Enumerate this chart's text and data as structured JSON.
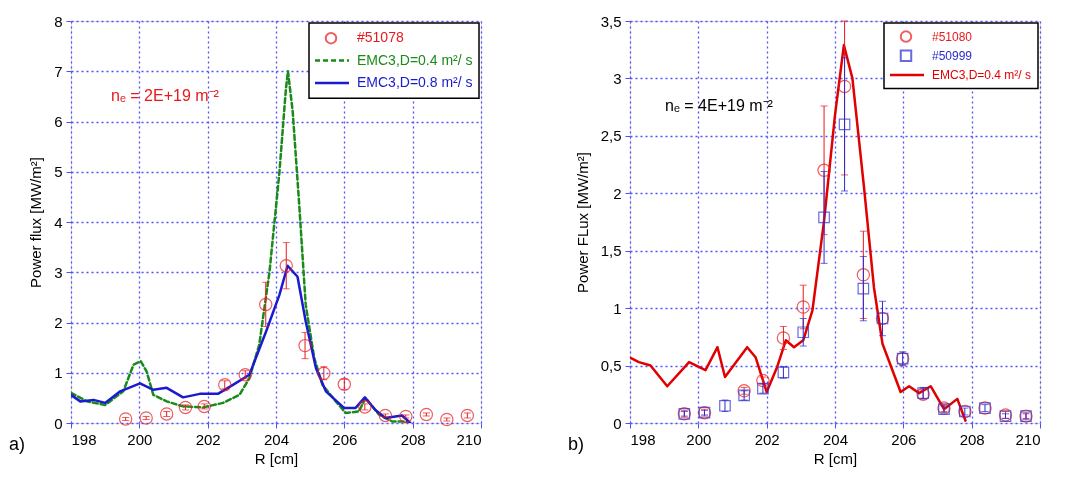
{
  "chart_data": [
    {
      "type": "line",
      "xlabel": "R  [cm]",
      "ylabel": "Power flux  [MW/m²]",
      "xlim": [
        198,
        210
      ],
      "xticks": [
        198,
        200,
        202,
        204,
        206,
        208,
        210
      ],
      "ylim": [
        0,
        8
      ],
      "yticks": [
        0,
        1,
        2,
        3,
        4,
        5,
        6,
        7,
        8
      ],
      "grid": true,
      "legend": "top right",
      "annotations": [
        "a)",
        "nₑ = 2E+19 m⁻²"
      ],
      "series": [
        {
          "name": "#51078",
          "color": "#e8191c",
          "type": "scatter",
          "marker": "circle",
          "x": [
            199.6,
            200.2,
            200.8,
            201.35,
            201.9,
            202.5,
            203.1,
            203.7,
            204.3,
            204.85,
            205.4,
            206.0,
            206.6,
            207.2,
            207.8,
            208.4,
            209.0,
            209.6
          ],
          "values": [
            0.08,
            0.1,
            0.18,
            0.31,
            0.33,
            0.76,
            0.96,
            2.36,
            3.13,
            1.54,
            0.99,
            0.77,
            0.32,
            0.15,
            0.13,
            0.17,
            0.07,
            0.15
          ],
          "errors": [
            0.03,
            0.03,
            0.05,
            0.05,
            0.05,
            0.08,
            0.08,
            0.44,
            0.46,
            0.26,
            0.13,
            0.1,
            0.06,
            0.03,
            0.03,
            0.03,
            0.03,
            0.05
          ]
        },
        {
          "name": "EMC3,D=0.4 m²/ s",
          "color": "#1a8a1a",
          "line_style": "dashed",
          "x": [
            198.0,
            198.47,
            199.0,
            199.53,
            199.83,
            200.04,
            200.21,
            200.41,
            200.8,
            201.28,
            201.86,
            202.45,
            202.93,
            203.22,
            203.51,
            203.81,
            204.1,
            204.29,
            204.35,
            204.49,
            204.68,
            204.87,
            205.12,
            205.36,
            205.75,
            206.04,
            206.43,
            206.62,
            207.01,
            207.4,
            207.79,
            207.88
          ],
          "values": [
            0.6,
            0.43,
            0.36,
            0.63,
            1.16,
            1.23,
            1.03,
            0.56,
            0.43,
            0.33,
            0.31,
            0.4,
            0.56,
            0.89,
            1.56,
            3.01,
            4.99,
            6.65,
            7.0,
            6.19,
            4.34,
            2.35,
            1.29,
            0.76,
            0.43,
            0.2,
            0.23,
            0.5,
            0.17,
            0.03,
            0.03,
            0.0
          ]
        },
        {
          "name": "EMC3,D=0.8 m²/ s",
          "color": "#1a1ad0",
          "line_style": "solid",
          "x": [
            198.0,
            198.27,
            198.66,
            199.0,
            199.44,
            200.02,
            200.41,
            200.8,
            201.28,
            201.77,
            202.3,
            202.74,
            203.22,
            203.71,
            204.1,
            204.34,
            204.63,
            204.87,
            205.17,
            205.46,
            205.99,
            206.33,
            206.6,
            206.91,
            207.2,
            207.69,
            207.93
          ],
          "values": [
            0.56,
            0.43,
            0.46,
            0.4,
            0.63,
            0.79,
            0.66,
            0.7,
            0.51,
            0.58,
            0.58,
            0.76,
            0.96,
            1.82,
            2.55,
            3.13,
            2.91,
            2.02,
            1.09,
            0.63,
            0.3,
            0.3,
            0.51,
            0.26,
            0.1,
            0.15,
            0.0
          ]
        }
      ]
    },
    {
      "type": "line",
      "xlabel": "R  [cm]",
      "ylabel": "Power  FLux  [MW/m²]",
      "xlim": [
        198,
        210
      ],
      "xticks": [
        198,
        200,
        202,
        204,
        206,
        208,
        210
      ],
      "ylim": [
        0,
        3.5
      ],
      "yticks": [
        0,
        {
          "value": 0.5,
          "label": "0,5"
        },
        1,
        {
          "value": 1.5,
          "label": "1,5"
        },
        2,
        {
          "value": 2.5,
          "label": "2,5"
        },
        3,
        {
          "value": 3.5,
          "label": "3,5"
        }
      ],
      "grid": true,
      "legend": "top right",
      "annotations": [
        "b)",
        "nₑ = 4E+19 m⁻²"
      ],
      "series": [
        {
          "name": "#51080",
          "color": "#e8191c",
          "type": "scatter",
          "marker": "circle",
          "x": [
            199.59,
            200.18,
            201.34,
            201.89,
            202.49,
            203.07,
            203.68,
            204.28,
            204.83,
            205.39,
            205.98,
            206.58,
            207.19,
            207.8,
            208.39,
            208.99,
            209.59
          ],
          "values": [
            0.08,
            0.09,
            0.28,
            0.37,
            0.74,
            1.01,
            2.2,
            2.93,
            1.29,
            0.91,
            0.56,
            0.25,
            0.13,
            0.1,
            0.13,
            0.07,
            0.06
          ],
          "errors": [
            0.03,
            0.03,
            0.03,
            0.03,
            0.1,
            0.19,
            0.56,
            [
              2.16,
              3.5
            ],
            0.38,
            null,
            null,
            0.04,
            0.03,
            null,
            null,
            0.03,
            0.03
          ]
        },
        {
          "name": "#50999",
          "color": "#2a2ad0",
          "type": "scatter",
          "marker": "square",
          "x": [
            199.59,
            200.18,
            200.78,
            201.34,
            201.89,
            202.49,
            203.07,
            203.68,
            204.28,
            204.83,
            205.39,
            205.98,
            206.58,
            207.19,
            207.8,
            208.39,
            208.99,
            209.59
          ],
          "values": [
            0.08,
            0.09,
            0.15,
            0.24,
            0.3,
            0.44,
            0.79,
            1.79,
            2.6,
            1.17,
            0.91,
            0.56,
            0.26,
            0.12,
            0.1,
            0.13,
            0.06,
            0.06
          ],
          "errors": [
            0.02,
            0.02,
            0.05,
            0.04,
            0.04,
            0.05,
            0.12,
            0.4,
            0.58,
            0.28,
            0.15,
            0.06,
            0.05,
            0.03,
            0.03,
            0.03,
            0.02,
            0.02
          ]
        },
        {
          "name": "EMC3,D=0.4 m²/ s",
          "color": "#e00000",
          "line_style": "solid",
          "x": [
            198.0,
            198.26,
            198.6,
            199.09,
            199.73,
            200.21,
            200.56,
            200.78,
            201.43,
            201.68,
            202.0,
            202.31,
            202.56,
            202.8,
            203.07,
            203.34,
            203.68,
            204.0,
            204.26,
            204.51,
            204.85,
            205.14,
            205.39,
            205.92,
            206.17,
            206.46,
            206.8,
            207.19,
            207.58,
            207.82
          ],
          "values": [
            0.57,
            0.53,
            0.5,
            0.32,
            0.53,
            0.46,
            0.66,
            0.4,
            0.66,
            0.57,
            0.27,
            0.49,
            0.72,
            0.66,
            0.72,
            0.98,
            1.76,
            2.68,
            3.29,
            3.0,
            2.05,
            1.18,
            0.69,
            0.27,
            0.32,
            0.26,
            0.32,
            0.12,
            0.21,
            0.02
          ]
        }
      ]
    }
  ]
}
